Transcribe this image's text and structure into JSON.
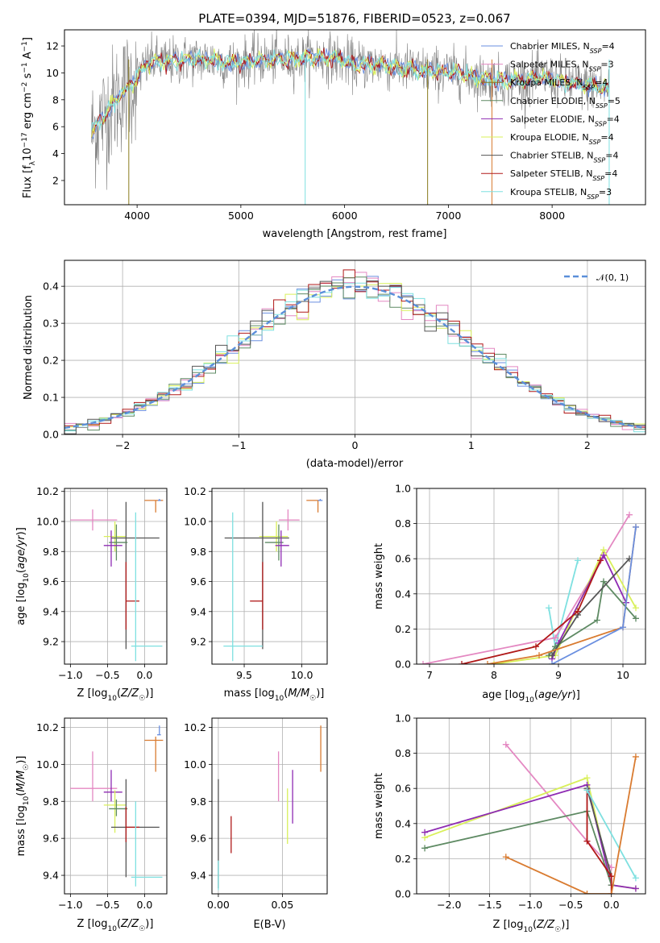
{
  "colors": {
    "Chabrier MILES": "#6a8fe0",
    "Salpeter MILES": "#e488c2",
    "Kroupa MILES": "#8a7b1e",
    "Chabrier ELODIE": "#5e8a63",
    "Salpeter ELODIE": "#8e2bb3",
    "Kroupa ELODIE": "#d9f05a",
    "Chabrier STELIB": "#555555",
    "Salpeter STELIB": "#b01818",
    "Kroupa STELIB": "#7ee0e0",
    "orange": "#d97b30",
    "data": "#808080",
    "normal": "#5b8fd9"
  },
  "chart_data": [
    {
      "id": "spectrum",
      "type": "line",
      "title": "PLATE=0394, MJD=51876, FIBERID=0523, z=0.067",
      "xlabel": "wavelength [Angstrom, rest frame]",
      "ylabel": "Flux [f_λ 10^-17 erg cm^-2 s^-1 A^-1]",
      "xlim": [
        3300,
        8900
      ],
      "ylim": [
        0.2,
        13.2
      ],
      "xticks": [
        4000,
        5000,
        6000,
        7000,
        8000
      ],
      "yticks": [
        2,
        4,
        6,
        8,
        10,
        12
      ],
      "legend_position": "upper-right",
      "legend": [
        {
          "name": "Chabrier MILES",
          "nssp": "4"
        },
        {
          "name": "Salpeter MILES",
          "nssp": "3"
        },
        {
          "name": "Kroupa MILES",
          "nssp": "4"
        },
        {
          "name": "Chabrier ELODIE",
          "nssp": "5"
        },
        {
          "name": "Salpeter ELODIE",
          "nssp": "4"
        },
        {
          "name": "Kroupa ELODIE",
          "nssp": "4"
        },
        {
          "name": "Chabrier STELIB",
          "nssp": "4"
        },
        {
          "name": "Salpeter STELIB",
          "nssp": "4"
        },
        {
          "name": "Kroupa STELIB",
          "nssp": "3"
        }
      ],
      "continuum": [
        [
          3560,
          5.5
        ],
        [
          3650,
          6.5
        ],
        [
          3750,
          7.5
        ],
        [
          3850,
          8.5
        ],
        [
          3950,
          9.2
        ],
        [
          4050,
          10.2
        ],
        [
          4150,
          10.9
        ],
        [
          4300,
          10.8
        ],
        [
          4500,
          11.0
        ],
        [
          4700,
          11.0
        ],
        [
          4900,
          10.7
        ],
        [
          5100,
          10.9
        ],
        [
          5300,
          11.0
        ],
        [
          5500,
          11.0
        ],
        [
          5700,
          11.2
        ],
        [
          5900,
          11.1
        ],
        [
          6100,
          10.6
        ],
        [
          6300,
          10.7
        ],
        [
          6500,
          10.4
        ],
        [
          6700,
          10.2
        ],
        [
          6900,
          10.1
        ],
        [
          7100,
          10.0
        ],
        [
          7300,
          9.6
        ],
        [
          7500,
          9.4
        ],
        [
          7700,
          9.4
        ],
        [
          7900,
          9.7
        ],
        [
          8100,
          9.3
        ],
        [
          8300,
          9.1
        ],
        [
          8450,
          9.0
        ],
        [
          8550,
          8.7
        ]
      ]
    },
    {
      "id": "residuals",
      "type": "line",
      "xlabel": "(data-model)/error",
      "ylabel": "Normed distribution",
      "xlim": [
        -2.5,
        2.5
      ],
      "ylim": [
        0,
        0.47
      ],
      "xticks": [
        -2,
        -1,
        0,
        1,
        2
      ],
      "yticks": [
        0.0,
        0.1,
        0.2,
        0.3,
        0.4
      ],
      "legend_position": "upper-right",
      "normal_label": "𝒩(0, 1)",
      "bin_width": 0.1
    },
    {
      "id": "age-vs-Z",
      "type": "scatter",
      "xlabel": "Z [log10(Z/Z☉)]",
      "ylabel": "age  [log10(age/yr)]",
      "xlim": [
        -1.08,
        0.3
      ],
      "ylim": [
        9.05,
        10.22
      ],
      "xticks": [
        -1.0,
        -0.5,
        0.0
      ],
      "yticks": [
        9.2,
        9.4,
        9.6,
        9.8,
        10.0,
        10.2
      ],
      "points": [
        {
          "series": "Salpeter MILES",
          "x": -0.7,
          "y": 10.01,
          "xerr": [
            0.3,
            0.33
          ],
          "yerr": [
            0.07,
            0.07
          ]
        },
        {
          "series": "Kroupa ELODIE",
          "x": -0.4,
          "y": 9.9,
          "xerr": [
            0.15,
            0.15
          ],
          "yerr": [
            0.1,
            0.1
          ]
        },
        {
          "series": "Chabrier STELIB",
          "x": -0.25,
          "y": 9.89,
          "xerr": [
            0.2,
            0.45
          ],
          "yerr": [
            0.74,
            0.24
          ]
        },
        {
          "series": "Chabrier ELODIE",
          "x": -0.38,
          "y": 9.86,
          "xerr": [
            0.1,
            0.15
          ],
          "yerr": [
            0.12,
            0.12
          ]
        },
        {
          "series": "Salpeter ELODIE",
          "x": -0.45,
          "y": 9.84,
          "xerr": [
            0.1,
            0.15
          ],
          "yerr": [
            0.14,
            0.1
          ]
        },
        {
          "series": "Salpeter STELIB",
          "x": -0.25,
          "y": 9.47,
          "xerr": [
            0.0,
            0.18
          ],
          "yerr": [
            0.19,
            0.26
          ]
        },
        {
          "series": "Kroupa STELIB",
          "x": -0.12,
          "y": 9.17,
          "xerr": [
            0.06,
            0.36
          ],
          "yerr": [
            0.1,
            0.89
          ]
        },
        {
          "series": "orange",
          "x": 0.15,
          "y": 10.14,
          "xerr": [
            0.15,
            0.1
          ],
          "yerr": [
            0.08,
            0.0
          ]
        },
        {
          "series": "Chabrier MILES",
          "x": 0.2,
          "y": 10.14,
          "xerr": [
            0.02,
            0.02
          ],
          "yerr": [
            0.0,
            0.01
          ]
        }
      ]
    },
    {
      "id": "age-vs-mass",
      "type": "scatter",
      "xlabel": "mass [log10(M/M☉)]",
      "ylabel": "",
      "xlim": [
        9.22,
        10.22
      ],
      "ylim": [
        9.05,
        10.22
      ],
      "xticks": [
        9.5,
        10.0
      ],
      "yticks": [
        9.2,
        9.4,
        9.6,
        9.8,
        10.0,
        10.2
      ],
      "points": [
        {
          "series": "Salpeter MILES",
          "x": 9.88,
          "y": 10.01,
          "xerr": [
            0.08,
            0.1
          ],
          "yerr": [
            0.07,
            0.07
          ]
        },
        {
          "series": "Kroupa ELODIE",
          "x": 9.78,
          "y": 9.9,
          "xerr": [
            0.15,
            0.1
          ],
          "yerr": [
            0.1,
            0.1
          ]
        },
        {
          "series": "Chabrier STELIB",
          "x": 9.66,
          "y": 9.89,
          "xerr": [
            0.33,
            0.23
          ],
          "yerr": [
            0.74,
            0.24
          ]
        },
        {
          "series": "Chabrier ELODIE",
          "x": 9.8,
          "y": 9.86,
          "xerr": [
            0.12,
            0.04
          ],
          "yerr": [
            0.12,
            0.12
          ]
        },
        {
          "series": "Salpeter ELODIE",
          "x": 9.82,
          "y": 9.84,
          "xerr": [
            0.05,
            0.07
          ],
          "yerr": [
            0.14,
            0.1
          ]
        },
        {
          "series": "Salpeter STELIB",
          "x": 9.66,
          "y": 9.47,
          "xerr": [
            0.11,
            0.0
          ],
          "yerr": [
            0.19,
            0.26
          ]
        },
        {
          "series": "Kroupa STELIB",
          "x": 9.4,
          "y": 9.17,
          "xerr": [
            0.08,
            0.26
          ],
          "yerr": [
            0.1,
            0.89
          ]
        },
        {
          "series": "orange",
          "x": 10.14,
          "y": 10.14,
          "xerr": [
            0.1,
            0.02
          ],
          "yerr": [
            0.08,
            0.0
          ]
        },
        {
          "series": "Chabrier MILES",
          "x": 10.16,
          "y": 10.14,
          "xerr": [
            0.02,
            0.02
          ],
          "yerr": [
            0.0,
            0.01
          ]
        }
      ]
    },
    {
      "id": "mass-weight-vs-age",
      "type": "line",
      "xlabel": "age  [log10(age/yr)]",
      "ylabel": "mass weight",
      "xlim": [
        6.8,
        10.35
      ],
      "ylim": [
        0.0,
        1.0
      ],
      "xticks": [
        7,
        8,
        9,
        10
      ],
      "yticks": [
        0.0,
        0.2,
        0.4,
        0.6,
        0.8,
        1.0
      ],
      "series": [
        {
          "name": "Kroupa STELIB",
          "x": [
            8.85,
            8.95,
            9.3
          ],
          "y": [
            0.32,
            0.1,
            0.59
          ]
        },
        {
          "name": "Salpeter MILES",
          "x": [
            6.9,
            8.95,
            10.1
          ],
          "y": [
            0.0,
            0.15,
            0.85
          ]
        },
        {
          "name": "Kroupa ELODIE",
          "x": [
            8.0,
            8.95,
            9.7,
            10.2
          ],
          "y": [
            0.0,
            0.05,
            0.65,
            0.32
          ]
        },
        {
          "name": "Salpeter ELODIE",
          "x": [
            8.9,
            9.0,
            9.7,
            10.05
          ],
          "y": [
            0.03,
            0.12,
            0.62,
            0.35
          ]
        },
        {
          "name": "Chabrier ELODIE",
          "x": [
            8.85,
            8.95,
            9.6,
            9.7,
            10.2
          ],
          "y": [
            0.05,
            0.1,
            0.25,
            0.47,
            0.26
          ]
        },
        {
          "name": "Chabrier STELIB",
          "x": [
            8.9,
            9.3,
            10.1
          ],
          "y": [
            0.05,
            0.28,
            0.6
          ]
        },
        {
          "name": "Salpeter STELIB",
          "x": [
            7.5,
            8.65,
            9.3,
            9.65
          ],
          "y": [
            0.0,
            0.1,
            0.3,
            0.59
          ]
        },
        {
          "name": "orange",
          "x": [
            7.9,
            8.7,
            10.0,
            10.2
          ],
          "y": [
            0.0,
            0.05,
            0.21,
            0.78
          ]
        },
        {
          "name": "Chabrier MILES",
          "x": [
            8.9,
            10.0,
            10.2
          ],
          "y": [
            0.0,
            0.21,
            0.78
          ]
        }
      ]
    },
    {
      "id": "mass-vs-Z",
      "type": "scatter",
      "xlabel": "Z [log10(Z/Z☉)]",
      "ylabel": "mass [log10(M/M☉)]",
      "xlim": [
        -1.08,
        0.3
      ],
      "ylim": [
        9.3,
        10.25
      ],
      "xticks": [
        -1.0,
        -0.5,
        0.0
      ],
      "yticks": [
        9.4,
        9.6,
        9.8,
        10.0,
        10.2
      ],
      "points": [
        {
          "series": "Salpeter MILES",
          "x": -0.7,
          "y": 9.87,
          "xerr": [
            0.3,
            0.33
          ],
          "yerr": [
            0.07,
            0.2
          ]
        },
        {
          "series": "Salpeter ELODIE",
          "x": -0.45,
          "y": 9.85,
          "xerr": [
            0.1,
            0.15
          ],
          "yerr": [
            0.05,
            0.12
          ]
        },
        {
          "series": "Kroupa ELODIE",
          "x": -0.4,
          "y": 9.78,
          "xerr": [
            0.15,
            0.15
          ],
          "yerr": [
            0.15,
            0.08
          ]
        },
        {
          "series": "Chabrier ELODIE",
          "x": -0.38,
          "y": 9.76,
          "xerr": [
            0.1,
            0.15
          ],
          "yerr": [
            0.04,
            0.05
          ]
        },
        {
          "series": "Chabrier STELIB",
          "x": -0.25,
          "y": 9.66,
          "xerr": [
            0.2,
            0.45
          ],
          "yerr": [
            0.27,
            0.26
          ]
        },
        {
          "series": "Salpeter STELIB",
          "x": -0.25,
          "y": 9.66,
          "xerr": [
            0.0,
            0.18
          ],
          "yerr": [
            0.08,
            0.11
          ]
        },
        {
          "series": "Kroupa STELIB",
          "x": -0.12,
          "y": 9.39,
          "xerr": [
            0.06,
            0.36
          ],
          "yerr": [
            0.05,
            0.41
          ]
        },
        {
          "series": "orange",
          "x": 0.15,
          "y": 10.13,
          "xerr": [
            0.15,
            0.1
          ],
          "yerr": [
            0.17,
            0.02
          ]
        },
        {
          "series": "Chabrier MILES",
          "x": 0.2,
          "y": 10.16,
          "xerr": [
            0.03,
            0.02
          ],
          "yerr": [
            0.0,
            0.05
          ]
        }
      ]
    },
    {
      "id": "mass-vs-ebv",
      "type": "scatter",
      "xlabel": "E(B-V)",
      "ylabel": "",
      "xlim": [
        -0.005,
        0.085
      ],
      "ylim": [
        9.3,
        10.25
      ],
      "xticks": [
        0.0,
        0.05
      ],
      "yticks": [
        9.4,
        9.6,
        9.8,
        10.0,
        10.2
      ],
      "points": [
        {
          "series": "Chabrier STELIB",
          "x": 0.0,
          "y": 9.66,
          "yerr": [
            0.33,
            0.26
          ]
        },
        {
          "series": "Kroupa STELIB",
          "x": 0.0,
          "y": 9.4,
          "yerr": [
            0.08,
            0.08
          ]
        },
        {
          "series": "Salpeter STELIB",
          "x": 0.01,
          "y": 9.62,
          "yerr": [
            0.1,
            0.1
          ]
        },
        {
          "series": "Salpeter MILES",
          "x": 0.047,
          "y": 9.94,
          "yerr": [
            0.14,
            0.13
          ]
        },
        {
          "series": "Kroupa ELODIE",
          "x": 0.054,
          "y": 9.72,
          "yerr": [
            0.15,
            0.15
          ]
        },
        {
          "series": "Salpeter ELODIE",
          "x": 0.058,
          "y": 9.83,
          "yerr": [
            0.15,
            0.14
          ]
        },
        {
          "series": "orange",
          "x": 0.08,
          "y": 10.08,
          "yerr": [
            0.12,
            0.13
          ]
        }
      ]
    },
    {
      "id": "mass-weight-vs-Z",
      "type": "line",
      "xlabel": "Z [log10(Z/Z☉)]",
      "ylabel": "mass weight",
      "xlim": [
        -2.4,
        0.42
      ],
      "ylim": [
        0.0,
        1.0
      ],
      "xticks": [
        -2.0,
        -1.5,
        -1.0,
        -0.5,
        0.0
      ],
      "yticks": [
        0.0,
        0.2,
        0.4,
        0.6,
        0.8,
        1.0
      ],
      "series": [
        {
          "name": "Salpeter MILES",
          "x": [
            -1.3,
            -0.3,
            0.0
          ],
          "y": [
            0.85,
            0.3,
            0.15
          ]
        },
        {
          "name": "Kroupa ELODIE",
          "x": [
            -2.3,
            -0.3,
            0.0,
            0.3
          ],
          "y": [
            0.32,
            0.66,
            0.05,
            0.03
          ]
        },
        {
          "name": "Salpeter ELODIE",
          "x": [
            -2.3,
            -0.3,
            0.0,
            0.3
          ],
          "y": [
            0.35,
            0.62,
            0.05,
            0.03
          ]
        },
        {
          "name": "Chabrier ELODIE",
          "x": [
            -2.3,
            -0.3,
            0.0
          ],
          "y": [
            0.26,
            0.47,
            0.05
          ]
        },
        {
          "name": "Chabrier STELIB",
          "x": [
            -0.3,
            0.0
          ],
          "y": [
            0.6,
            0.1
          ]
        },
        {
          "name": "Salpeter STELIB",
          "x": [
            -0.3,
            -0.3,
            0.0,
            0.0
          ],
          "y": [
            0.59,
            0.3,
            0.1,
            0.0
          ]
        },
        {
          "name": "Kroupa STELIB",
          "x": [
            -0.3,
            0.3
          ],
          "y": [
            0.59,
            0.09
          ]
        },
        {
          "name": "orange",
          "x": [
            -1.3,
            -0.3,
            0.0,
            0.3
          ],
          "y": [
            0.21,
            0.0,
            0.0,
            0.78
          ]
        }
      ]
    }
  ]
}
